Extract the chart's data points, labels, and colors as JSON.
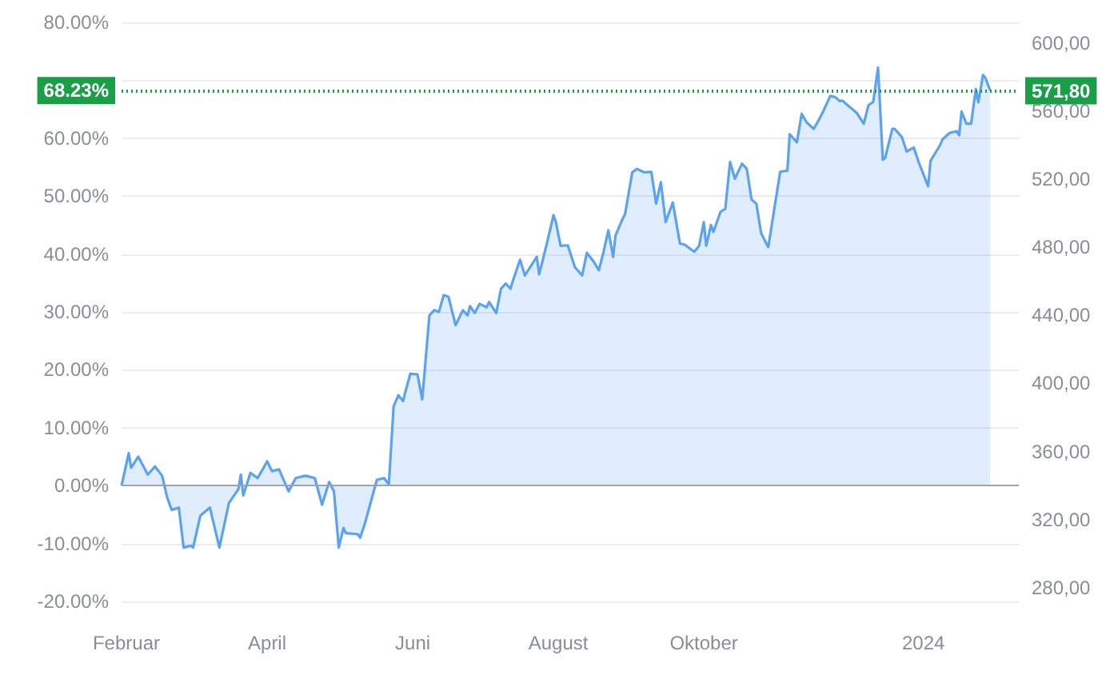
{
  "chart_data": {
    "type": "area",
    "color": "#5ba3f0",
    "x": [
      "2023-01-30",
      "2023-02-02",
      "2023-02-03",
      "2023-02-06",
      "2023-02-10",
      "2023-02-13",
      "2023-02-16",
      "2023-02-18",
      "2023-02-20",
      "2023-02-23",
      "2023-02-25",
      "2023-02-28",
      "2023-03-01",
      "2023-03-04",
      "2023-03-08",
      "2023-03-12",
      "2023-03-16",
      "2023-03-20",
      "2023-03-21",
      "2023-03-22",
      "2023-03-25",
      "2023-03-28",
      "2023-03-30",
      "2023-04-01",
      "2023-04-03",
      "2023-04-06",
      "2023-04-10",
      "2023-04-13",
      "2023-04-17",
      "2023-04-21",
      "2023-04-24",
      "2023-04-27",
      "2023-04-29",
      "2023-05-01",
      "2023-05-03",
      "2023-05-04",
      "2023-05-09",
      "2023-05-10",
      "2023-05-12",
      "2023-05-17",
      "2023-05-20",
      "2023-05-22",
      "2023-05-24",
      "2023-05-26",
      "2023-05-28",
      "2023-05-29",
      "2023-05-31",
      "2023-06-03",
      "2023-06-05",
      "2023-06-08",
      "2023-06-10",
      "2023-06-12",
      "2023-06-14",
      "2023-06-16",
      "2023-06-19",
      "2023-06-22",
      "2023-06-24",
      "2023-06-25",
      "2023-06-27",
      "2023-06-29",
      "2023-07-02",
      "2023-07-03",
      "2023-07-06",
      "2023-07-08",
      "2023-07-10",
      "2023-07-12",
      "2023-07-13",
      "2023-07-16",
      "2023-07-18",
      "2023-07-23",
      "2023-07-24",
      "2023-07-27",
      "2023-07-30",
      "2023-07-31",
      "2023-08-02",
      "2023-08-05",
      "2023-08-08",
      "2023-08-11",
      "2023-08-13",
      "2023-08-16",
      "2023-08-18",
      "2023-08-20",
      "2023-08-22",
      "2023-08-24",
      "2023-08-25",
      "2023-08-28",
      "2023-08-29",
      "2023-09-01",
      "2023-09-03",
      "2023-09-06",
      "2023-09-09",
      "2023-09-11",
      "2023-09-13",
      "2023-09-15",
      "2023-09-18",
      "2023-09-21",
      "2023-09-23",
      "2023-09-27",
      "2023-09-29",
      "2023-10-01",
      "2023-10-02",
      "2023-10-04",
      "2023-10-05",
      "2023-10-08",
      "2023-10-10",
      "2023-10-12",
      "2023-10-14",
      "2023-10-17",
      "2023-10-19",
      "2023-10-21",
      "2023-10-23",
      "2023-10-25",
      "2023-10-28",
      "2023-10-30",
      "2023-11-02",
      "2023-11-05",
      "2023-11-06",
      "2023-11-09",
      "2023-11-11",
      "2023-11-13",
      "2023-11-16",
      "2023-11-18",
      "2023-11-20",
      "2023-11-23",
      "2023-11-25",
      "2023-11-27",
      "2023-11-28",
      "2023-12-02",
      "2023-12-04",
      "2023-12-07",
      "2023-12-09",
      "2023-12-11",
      "2023-12-13",
      "2023-12-15",
      "2023-12-16",
      "2023-12-19",
      "2023-12-20",
      "2023-12-23",
      "2023-12-25",
      "2023-12-28",
      "2023-12-30",
      "2024-01-03",
      "2024-01-04",
      "2024-01-08",
      "2024-01-09",
      "2024-01-12",
      "2024-01-15",
      "2024-01-16",
      "2024-01-17",
      "2024-01-19",
      "2024-01-21",
      "2024-01-23",
      "2024-01-24",
      "2024-01-26",
      "2024-01-27",
      "2024-01-29"
    ],
    "values": [
      0,
      5.6,
      3.1,
      5,
      1.9,
      3.3,
      1.7,
      -1.9,
      -4.2,
      -3.8,
      -10.7,
      -10.4,
      -10.7,
      -5.2,
      -3.8,
      -10.7,
      -3,
      -0.6,
      1.9,
      -1.7,
      2.2,
      1.3,
      2.7,
      4.2,
      2.5,
      2.8,
      -1,
      1.3,
      1.7,
      1.3,
      -3.3,
      0.6,
      -1,
      -10.7,
      -7.3,
      -8.2,
      -8.4,
      -9,
      -6.5,
      1,
      1.3,
      0.2,
      13.7,
      15.6,
      14.6,
      16.3,
      19.3,
      19.2,
      14.9,
      29.4,
      30.3,
      30,
      32.9,
      32.6,
      27.7,
      30.3,
      29.4,
      31,
      29.8,
      31.4,
      30.8,
      31.7,
      29.8,
      34,
      34.9,
      34,
      35.4,
      39,
      36.3,
      39.5,
      36.5,
      41.4,
      46.7,
      45.5,
      41.4,
      41.5,
      37.7,
      36.3,
      40.2,
      38.6,
      37.2,
      40.4,
      44.1,
      39.5,
      43.2,
      46.1,
      46.9,
      54.1,
      54.7,
      54.1,
      54.2,
      48.7,
      52.4,
      45.5,
      48.9,
      41.8,
      41.6,
      40.4,
      41.4,
      45.5,
      41.4,
      45,
      43.8,
      47.3,
      47.8,
      55.9,
      53,
      55.6,
      54.7,
      49.4,
      48.7,
      43.6,
      41.2,
      46.4,
      54.2,
      54.4,
      60.7,
      59.3,
      64.2,
      62.8,
      61.6,
      63,
      64.6,
      67.3,
      67.1,
      66.4,
      66.5,
      65.1,
      64.4,
      62.5,
      65.7,
      66.3,
      72.2,
      56.3,
      56.6,
      61.6,
      61.6,
      60.2,
      57.7,
      58.4,
      55.9,
      51.7,
      56.1,
      58.8,
      59.8,
      60.9,
      61.2,
      60.5,
      64.6,
      62.5,
      62.5,
      68.5,
      66.2,
      70.9,
      70.4,
      68.23
    ],
    "xlim": [
      "2023-01-30",
      "2024-02-10"
    ],
    "xticks": [
      {
        "value": "2023-02-01",
        "label": "Februar"
      },
      {
        "value": "2023-04-01",
        "label": "April"
      },
      {
        "value": "2023-06-01",
        "label": "Juni"
      },
      {
        "value": "2023-08-01",
        "label": "August"
      },
      {
        "value": "2023-10-01",
        "label": "Oktober"
      },
      {
        "value": "2024-01-01",
        "label": "2024"
      }
    ],
    "ylim": [
      -20,
      80
    ],
    "yticks": [
      {
        "value": -20,
        "label": "-20.00%"
      },
      {
        "value": -10,
        "label": "-10.00%"
      },
      {
        "value": 0,
        "label": "0.00%"
      },
      {
        "value": 10,
        "label": "10.00%"
      },
      {
        "value": 20,
        "label": "20.00%"
      },
      {
        "value": 30,
        "label": "30.00%"
      },
      {
        "value": 40,
        "label": "40.00%"
      },
      {
        "value": 50,
        "label": "50.00%"
      },
      {
        "value": 60,
        "label": "60.00%"
      },
      {
        "value": 70,
        "label": null
      },
      {
        "value": 80,
        "label": "80.00%"
      }
    ],
    "y2lim": [
      272,
      612
    ],
    "y2ticks": [
      {
        "value": 280,
        "label": "280,00"
      },
      {
        "value": 320,
        "label": "320,00"
      },
      {
        "value": 360,
        "label": "360,00"
      },
      {
        "value": 400,
        "label": "400,00"
      },
      {
        "value": 440,
        "label": "440,00"
      },
      {
        "value": 480,
        "label": "480,00"
      },
      {
        "value": 520,
        "label": "520,00"
      },
      {
        "value": 560,
        "label": "560,00"
      },
      {
        "value": 600,
        "label": "600,00"
      }
    ],
    "ref_lines": [
      {
        "axis": "y",
        "value": 0,
        "color": "#a0a3ad",
        "line_style": "solid"
      },
      {
        "axis": "y",
        "value": 68.23,
        "label": "68.23%",
        "color": "#1a9e48",
        "line_style": "dotted"
      },
      {
        "axis": "y2",
        "value": 571.8,
        "label": "571,80",
        "color": "#1a9e48",
        "line_style": "dotted"
      }
    ],
    "grid": "y",
    "marker": "none"
  }
}
